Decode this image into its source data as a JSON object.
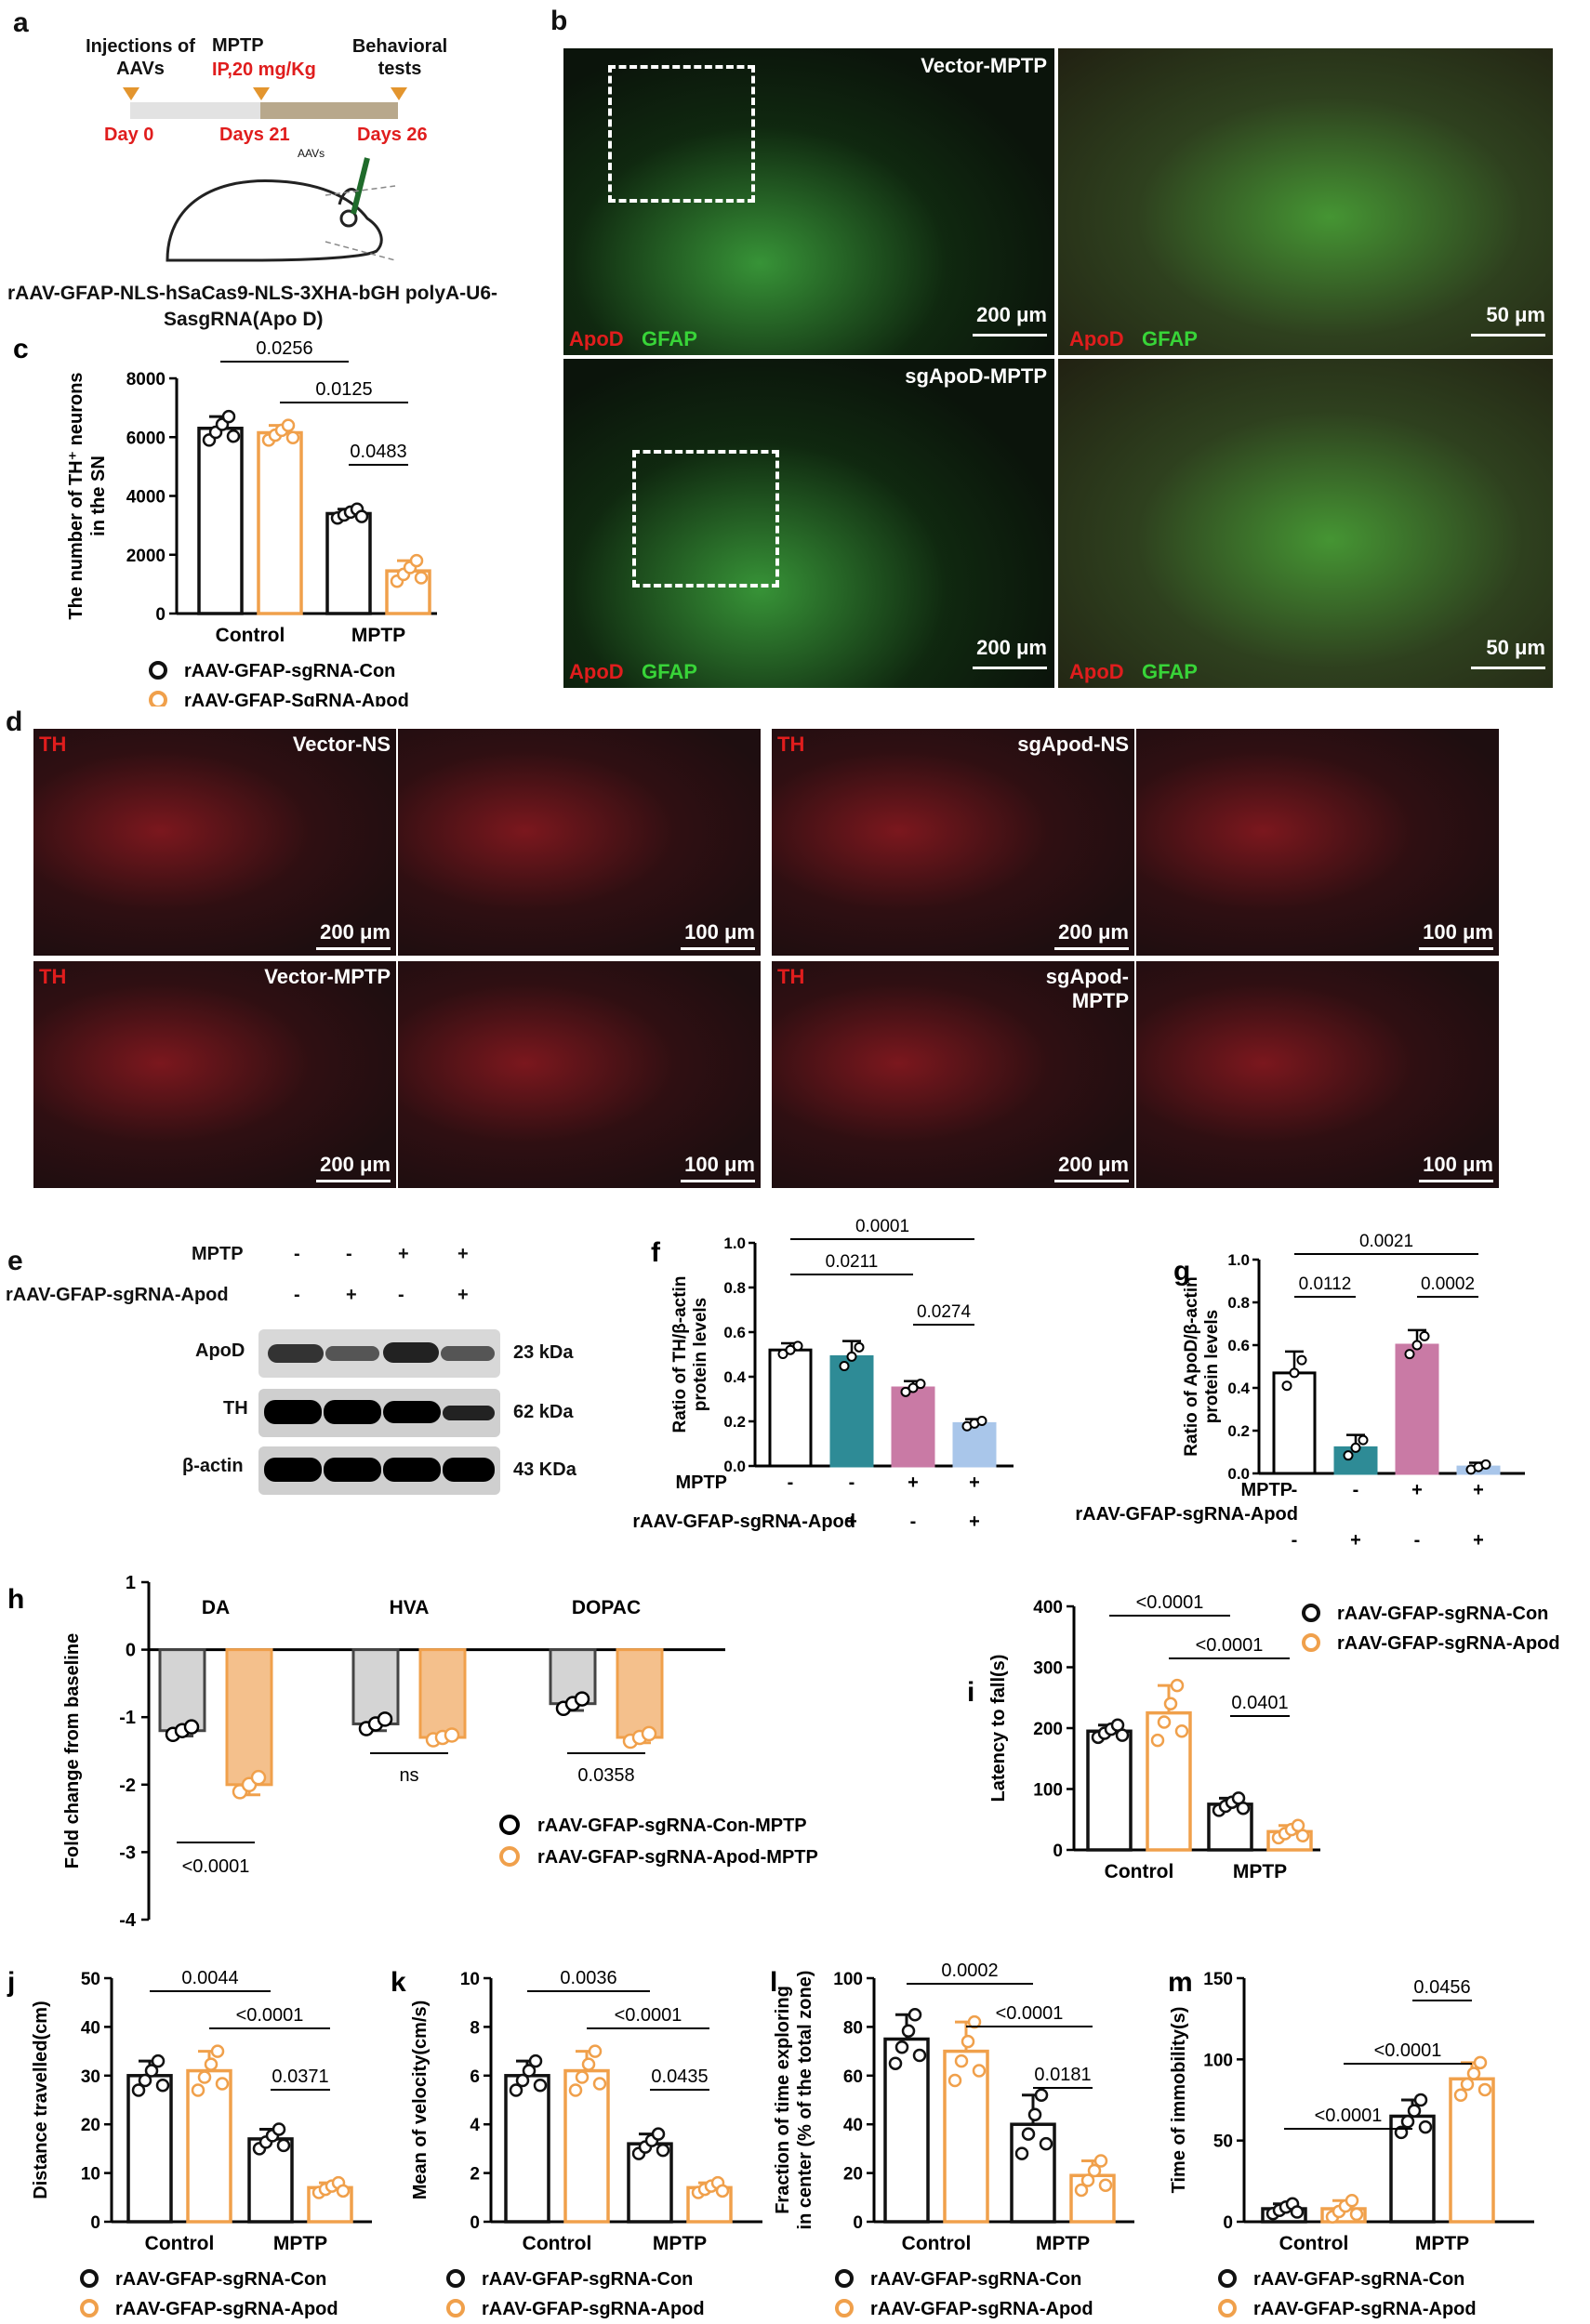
{
  "panel_labels": {
    "a": "a",
    "b": "b",
    "c": "c",
    "d": "d",
    "e": "e",
    "f": "f",
    "g": "g",
    "h": "h",
    "i": "i",
    "j": "j",
    "k": "k",
    "l": "l",
    "m": "m"
  },
  "timeline": {
    "top": [
      "Injections of AAVs",
      "MPTP",
      "IP,20 mg/Kg",
      "Behavioral tests"
    ],
    "days": [
      "Day 0",
      "Days 21",
      "Days 26"
    ],
    "aav_label": "AAVs",
    "construct_line1": "rAAV-GFAP-NLS-hSaCas9-NLS-3XHA-bGH polyA-U6-",
    "construct_line2": "SasgRNA(Apo D)"
  },
  "panel_b": {
    "titles": [
      "Vector-MPTP",
      "sgApoD-MPTP"
    ],
    "stain_red": "ApoD",
    "stain_green": "GFAP",
    "scale_large": "200 μm",
    "scale_small": "50 μm"
  },
  "panel_d": {
    "stain": "TH",
    "titles": [
      "Vector-NS",
      "sgApod-NS",
      "Vector-MPTP",
      "sgApod-",
      "MPTP"
    ],
    "scale_large": "200 μm",
    "scale_small": "100 μm"
  },
  "panel_e": {
    "row_labels": [
      "MPTP",
      "rAAV-GFAP-sgRNA-Apod"
    ],
    "mptp_signs": [
      "-",
      "-",
      "+",
      "+"
    ],
    "sgrna_signs": [
      "-",
      "+",
      "-",
      "+"
    ],
    "bands": [
      "ApoD",
      "TH",
      "β-actin"
    ],
    "sizes": [
      "23 kDa",
      "62 kDa",
      "43 KDa"
    ]
  },
  "colors": {
    "black": "#111111",
    "orange": "#f0a04b",
    "teal": "#2e8b96",
    "pink": "#c97aa5",
    "blue": "#a9c6ea",
    "grey": "#d4d4d4",
    "red": "#e01d1d"
  },
  "chart_data": [
    {
      "id": "c",
      "type": "bar",
      "ylabel_line1": "The number of TH⁺ neurons",
      "ylabel_line2": "in the SN",
      "categories": [
        "Control",
        "MPTP"
      ],
      "ylim": [
        0,
        8000
      ],
      "yticks": [
        "0",
        "2000",
        "4000",
        "6000",
        "8000"
      ],
      "series": [
        {
          "name": "rAAV-GFAP-sgRNA-Con",
          "values": [
            6300,
            3400
          ],
          "err": [
            400,
            150
          ]
        },
        {
          "name": "rAAV-GFAP-SgRNA-Apod",
          "values": [
            6150,
            1450
          ],
          "err": [
            250,
            350
          ]
        }
      ],
      "annotations": [
        "0.0256",
        "0.0125",
        "0.0483"
      ]
    },
    {
      "id": "f",
      "type": "bar",
      "ylabel_line1": "Ratio of TH/β-actin",
      "ylabel_line2": "protein levels",
      "categories": [
        "1",
        "2",
        "3",
        "4"
      ],
      "ylim": [
        0,
        1.0
      ],
      "yticks": [
        "0.0",
        "0.2",
        "0.4",
        "0.6",
        "0.8",
        "1.0"
      ],
      "values": [
        0.52,
        0.49,
        0.35,
        0.19
      ],
      "err": [
        0.03,
        0.07,
        0.03,
        0.02
      ],
      "row1_label": "MPTP",
      "row1": [
        "-",
        "-",
        "+",
        "+"
      ],
      "row2_label": "rAAV-GFAP-sgRNA-Apod",
      "row2": [
        "-",
        "+",
        "-",
        "+"
      ],
      "annotations": [
        "0.0001",
        "0.0211",
        "0.0274"
      ]
    },
    {
      "id": "g",
      "type": "bar",
      "ylabel_line1": "Ratio of ApoD/β-actin",
      "ylabel_line2": "protein levels",
      "categories": [
        "1",
        "2",
        "3",
        "4"
      ],
      "ylim": [
        0,
        1.0
      ],
      "yticks": [
        "0.0",
        "0.2",
        "0.4",
        "0.6",
        "0.8",
        "1.0"
      ],
      "values": [
        0.47,
        0.12,
        0.6,
        0.03
      ],
      "err": [
        0.1,
        0.06,
        0.07,
        0.02
      ],
      "row1_label": "MPTP",
      "row1": [
        "-",
        "-",
        "+",
        "+"
      ],
      "row2_label": "rAAV-GFAP-sgRNA-Apod",
      "row2": [
        "-",
        "+",
        "-",
        "+"
      ],
      "annotations": [
        "0.0021",
        "0.0112",
        "0.0002"
      ]
    },
    {
      "id": "h",
      "type": "bar",
      "ylabel": "Fold change from baseline",
      "categories": [
        "DA",
        "HVA",
        "DOPAC"
      ],
      "ylim": [
        -4,
        1
      ],
      "yticks": [
        "-4",
        "-3",
        "-2",
        "-1",
        "0",
        "1"
      ],
      "series": [
        {
          "name": "rAAV-GFAP-sgRNA-Con-MPTP",
          "values": [
            -1.2,
            -1.1,
            -0.8
          ],
          "err": [
            0.08,
            0.1,
            0.1
          ]
        },
        {
          "name": "rAAV-GFAP-sgRNA-Apod-MPTP",
          "values": [
            -2.0,
            -1.3,
            -1.3
          ],
          "err": [
            0.15,
            0.05,
            0.08
          ]
        }
      ],
      "annotations": [
        "<0.0001",
        "ns",
        "0.0358"
      ]
    },
    {
      "id": "i",
      "type": "bar",
      "ylabel": "Latency to fall(s)",
      "categories": [
        "Control",
        "MPTP"
      ],
      "ylim": [
        0,
        400
      ],
      "yticks": [
        "0",
        "100",
        "200",
        "300",
        "400"
      ],
      "series": [
        {
          "name": "rAAV-GFAP-sgRNA-Con",
          "values": [
            195,
            75
          ],
          "err": [
            10,
            10
          ]
        },
        {
          "name": "rAAV-GFAP-sgRNA-Apod",
          "values": [
            225,
            30
          ],
          "err": [
            45,
            10
          ]
        }
      ],
      "annotations": [
        "<0.0001",
        "<0.0001",
        "0.0401"
      ]
    },
    {
      "id": "j",
      "type": "bar",
      "ylabel": "Distance travelled(cm)",
      "categories": [
        "Control",
        "MPTP"
      ],
      "ylim": [
        0,
        50
      ],
      "yticks": [
        "0",
        "10",
        "20",
        "30",
        "40",
        "50"
      ],
      "series": [
        {
          "name": "rAAV-GFAP-sgRNA-Con",
          "values": [
            30,
            17
          ],
          "err": [
            3,
            2
          ]
        },
        {
          "name": "rAAV-GFAP-sgRNA-Apod",
          "values": [
            31,
            7
          ],
          "err": [
            4,
            1
          ]
        }
      ],
      "annotations": [
        "0.0044",
        "<0.0001",
        "0.0371"
      ]
    },
    {
      "id": "k",
      "type": "bar",
      "ylabel": "Mean of velocity(cm/s)",
      "categories": [
        "Control",
        "MPTP"
      ],
      "ylim": [
        0,
        10
      ],
      "yticks": [
        "0",
        "2",
        "4",
        "6",
        "8",
        "10"
      ],
      "series": [
        {
          "name": "rAAV-GFAP-sgRNA-Con",
          "values": [
            6,
            3.2
          ],
          "err": [
            0.6,
            0.4
          ]
        },
        {
          "name": "rAAV-GFAP-sgRNA-Apod",
          "values": [
            6.2,
            1.4
          ],
          "err": [
            0.8,
            0.2
          ]
        }
      ],
      "annotations": [
        "0.0036",
        "<0.0001",
        "0.0435"
      ]
    },
    {
      "id": "l",
      "type": "bar",
      "ylabel_line1": "Fraction of time exploring",
      "ylabel_line2": "in center (% of the total zone)",
      "categories": [
        "Control",
        "MPTP"
      ],
      "ylim": [
        0,
        100
      ],
      "yticks": [
        "0",
        "20",
        "40",
        "60",
        "80",
        "100"
      ],
      "series": [
        {
          "name": "rAAV-GFAP-sgRNA-Con",
          "values": [
            75,
            40
          ],
          "err": [
            10,
            12
          ]
        },
        {
          "name": "rAAV-GFAP-sgRNA-Apod",
          "values": [
            70,
            19
          ],
          "err": [
            12,
            6
          ]
        }
      ],
      "annotations": [
        "0.0002",
        "<0.0001",
        "0.0181"
      ]
    },
    {
      "id": "m",
      "type": "bar",
      "ylabel": "Time of immobility(s)",
      "categories": [
        "Control",
        "MPTP"
      ],
      "ylim": [
        0,
        150
      ],
      "yticks": [
        "0",
        "50",
        "100",
        "150"
      ],
      "series": [
        {
          "name": "rAAV-GFAP-sgRNA-Con",
          "values": [
            8,
            65
          ],
          "err": [
            3,
            10
          ]
        },
        {
          "name": "rAAV-GFAP-sgRNA-Apod",
          "values": [
            8,
            88
          ],
          "err": [
            5,
            10
          ]
        }
      ],
      "annotations": [
        "<0.0001",
        "<0.0001",
        "0.0456"
      ]
    }
  ]
}
